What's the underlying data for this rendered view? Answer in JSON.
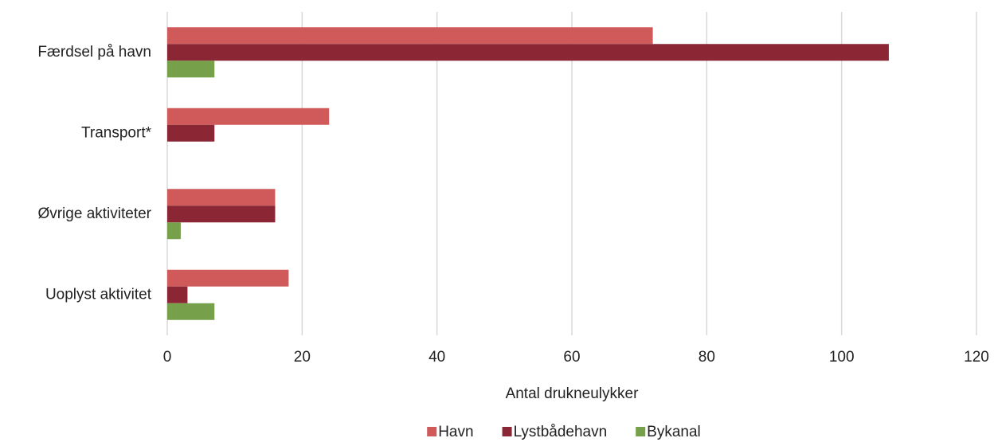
{
  "chart_data": {
    "type": "hbar",
    "x_label": "Antal drukneulykker",
    "categories": [
      "Færdsel på havn",
      "Transport*",
      "Øvrige aktiviteter",
      "Uoplyst aktivitet"
    ],
    "series": [
      {
        "name": "Havn",
        "color": "#d05a5a",
        "values": [
          72,
          24,
          16,
          18
        ]
      },
      {
        "name": "Lystbådehavn",
        "color": "#8b2635",
        "values": [
          107,
          7,
          16,
          3
        ]
      },
      {
        "name": "Bykanal",
        "color": "#77a04a",
        "values": [
          7,
          0,
          2,
          7
        ]
      }
    ],
    "xlim": [
      0,
      120
    ],
    "xticks": [
      0,
      20,
      40,
      60,
      80,
      100,
      120
    ],
    "grid": true,
    "legend": "bottom"
  }
}
